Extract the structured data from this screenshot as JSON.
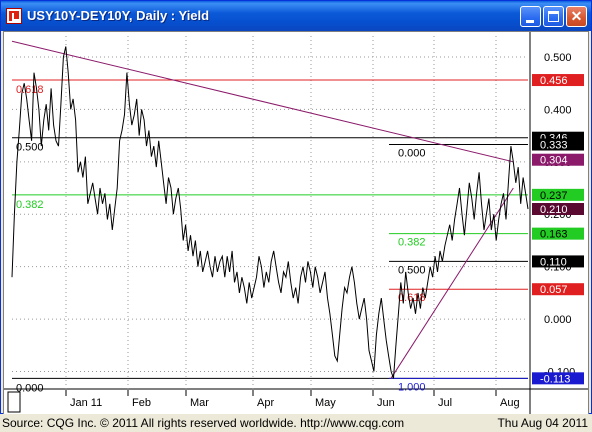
{
  "window": {
    "title": "USY10Y-DEY10Y, Daily : Yield"
  },
  "status": {
    "source": "Source: CQG Inc. © 2011 All rights reserved worldwide. http://www.cqg.com",
    "date": "Thu Aug 04 2011"
  },
  "colors": {
    "red": "#e02020",
    "green": "#22cc22",
    "black": "#000000",
    "purple": "#8b1a6b",
    "blue": "#1a1ad0",
    "grid": "#9a9a9a"
  },
  "chart_data": {
    "type": "line",
    "title": "USY10Y-DEY10Y, Daily : Yield",
    "ylim": [
      -0.12,
      0.54
    ],
    "y_ticks": [
      {
        "value": 0.5,
        "label": "0.500"
      },
      {
        "value": 0.4,
        "label": "0.400"
      },
      {
        "value": 0.3,
        "label": "0.300"
      },
      {
        "value": 0.2,
        "label": "0.200"
      },
      {
        "value": 0.1,
        "label": "0.100"
      },
      {
        "value": 0.0,
        "label": "0.000"
      },
      {
        "value": -0.1,
        "label": "-0.100"
      }
    ],
    "x_labels": [
      "Jan 11",
      "Feb",
      "Mar",
      "Apr",
      "May",
      "Jun",
      "Jul",
      "Aug"
    ],
    "price_tags": [
      {
        "value": 0.456,
        "label": "0.456",
        "bg": "#e02020",
        "fg": "#ffffff"
      },
      {
        "value": 0.346,
        "label": "0.346",
        "bg": "#000000",
        "fg": "#ffffff"
      },
      {
        "value": 0.333,
        "label": "0.333",
        "bg": "#000000",
        "fg": "#ffffff"
      },
      {
        "value": 0.304,
        "label": "0.304",
        "bg": "#8b1a6b",
        "fg": "#ffffff"
      },
      {
        "value": 0.237,
        "label": "0.237",
        "bg": "#22cc22",
        "fg": "#000000"
      },
      {
        "value": 0.21,
        "label": "0.210",
        "bg": "#5a0a30",
        "fg": "#ffffff"
      },
      {
        "value": 0.163,
        "label": "0.163",
        "bg": "#22cc22",
        "fg": "#000000"
      },
      {
        "value": 0.11,
        "label": "0.110",
        "bg": "#000000",
        "fg": "#ffffff"
      },
      {
        "value": 0.057,
        "label": "0.057",
        "bg": "#e02020",
        "fg": "#ffffff"
      },
      {
        "value": -0.113,
        "label": "-0.113",
        "bg": "#1a1ad0",
        "fg": "#ffffff"
      }
    ],
    "fib_left": [
      {
        "value": 0.456,
        "label": "0.618",
        "color": "#e02020"
      },
      {
        "value": 0.346,
        "label": "0.500",
        "color": "#000000"
      },
      {
        "value": 0.237,
        "label": "0.382",
        "color": "#22cc22"
      },
      {
        "value": -0.113,
        "label": "0.000",
        "color": "#000000"
      }
    ],
    "fib_right": [
      {
        "value": 0.333,
        "label": "0.000",
        "color": "#000000"
      },
      {
        "value": 0.163,
        "label": "0.382",
        "color": "#22cc22"
      },
      {
        "value": 0.11,
        "label": "0.500",
        "color": "#000000"
      },
      {
        "value": 0.057,
        "label": "0.618",
        "color": "#e02020"
      },
      {
        "value": -0.113,
        "label": "1.000",
        "color": "#1a1ad0"
      }
    ],
    "series": [
      {
        "values": [
          0.08,
          0.2,
          0.3,
          0.36,
          0.43,
          0.45,
          0.42,
          0.38,
          0.34,
          0.47,
          0.44,
          0.4,
          0.33,
          0.38,
          0.41,
          0.36,
          0.44,
          0.37,
          0.34,
          0.33,
          0.41,
          0.5,
          0.52,
          0.47,
          0.4,
          0.42,
          0.38,
          0.28,
          0.3,
          0.27,
          0.31,
          0.22,
          0.24,
          0.26,
          0.23,
          0.2,
          0.25,
          0.22,
          0.24,
          0.19,
          0.22,
          0.17,
          0.21,
          0.25,
          0.34,
          0.36,
          0.39,
          0.47,
          0.41,
          0.37,
          0.39,
          0.42,
          0.35,
          0.4,
          0.38,
          0.33,
          0.36,
          0.31,
          0.33,
          0.29,
          0.34,
          0.3,
          0.26,
          0.22,
          0.27,
          0.25,
          0.2,
          0.23,
          0.25,
          0.21,
          0.15,
          0.18,
          0.13,
          0.16,
          0.12,
          0.15,
          0.1,
          0.13,
          0.09,
          0.11,
          0.13,
          0.1,
          0.08,
          0.12,
          0.09,
          0.11,
          0.12,
          0.08,
          0.12,
          0.09,
          0.13,
          0.07,
          0.09,
          0.05,
          0.08,
          0.06,
          0.03,
          0.07,
          0.04,
          0.06,
          0.08,
          0.12,
          0.1,
          0.06,
          0.09,
          0.07,
          0.11,
          0.13,
          0.1,
          0.07,
          0.05,
          0.09,
          0.08,
          0.11,
          0.07,
          0.04,
          0.06,
          0.03,
          0.08,
          0.1,
          0.07,
          0.11,
          0.09,
          0.06,
          0.1,
          0.08,
          0.05,
          0.07,
          0.09,
          0.04,
          0.01,
          -0.03,
          -0.07,
          -0.08,
          -0.03,
          0.02,
          0.06,
          0.05,
          0.08,
          0.1,
          0.07,
          0.03,
          0.0,
          0.02,
          0.04,
          0.0,
          -0.06,
          -0.08,
          -0.1,
          -0.03,
          0.01,
          0.04,
          0.0,
          -0.04,
          -0.07,
          -0.1,
          -0.113,
          -0.05,
          0.01,
          0.07,
          0.03,
          0.09,
          0.05,
          0.02,
          0.04,
          0.01,
          0.05,
          0.02,
          0.06,
          0.04,
          0.07,
          0.1,
          0.08,
          0.12,
          0.09,
          0.13,
          0.11,
          0.14,
          0.16,
          0.18,
          0.15,
          0.19,
          0.22,
          0.25,
          0.2,
          0.16,
          0.21,
          0.26,
          0.23,
          0.19,
          0.24,
          0.28,
          0.22,
          0.17,
          0.2,
          0.23,
          0.17,
          0.2,
          0.15,
          0.19,
          0.22,
          0.24,
          0.19,
          0.26,
          0.33,
          0.3,
          0.26,
          0.29,
          0.22,
          0.27,
          0.24,
          0.21
        ]
      }
    ],
    "trendlines": [
      {
        "from": [
          0,
          0.53
        ],
        "to": [
          205,
          0.3
        ],
        "color": "#8b1a6b"
      },
      {
        "from": [
          155,
          -0.113
        ],
        "to": [
          205,
          0.25
        ],
        "color": "#8b1a6b"
      }
    ]
  }
}
